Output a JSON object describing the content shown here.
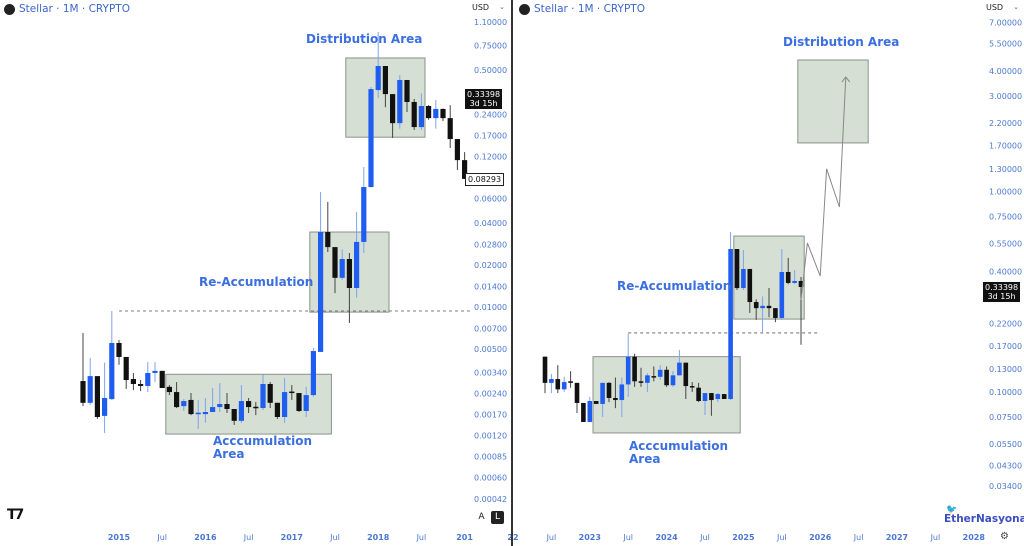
{
  "left_panel": {
    "header": {
      "symbol": "Stellar",
      "interval": "1M",
      "market": "CRYPTO",
      "title": "Stellar · 1M · CRYPTO"
    },
    "currency": "USD",
    "annotations": {
      "distribution": "Distribution Area",
      "reaccumulation": "Re-Accumulation",
      "accumulation_line1": "Acccumulation",
      "accumulation_line2": "Area"
    },
    "price_tag": {
      "price": "0.33398",
      "countdown": "3d 15h"
    },
    "last_close_tag": "0.08293",
    "scale_buttons": {
      "auto": "A",
      "log": "L"
    }
  },
  "right_panel": {
    "header": {
      "title": "Stellar · 1M · CRYPTO"
    },
    "currency": "USD",
    "annotations": {
      "distribution": "Distribution Area",
      "reaccumulation": "Re-Accumulation",
      "accumulation_line1": "Acccumulation",
      "accumulation_line2": "Area"
    },
    "price_tag": {
      "price": "0.33398",
      "countdown": "3d 15h"
    },
    "watermark": "EtherNasyonaL"
  },
  "colors": {
    "up": "#1f5cf0",
    "down": "#111111",
    "box_fill": "#d5dfd3",
    "box_border": "#8b918b",
    "axis_text": "#4a78d0",
    "annotation": "#3b6fe0"
  },
  "icons": {
    "symbol_logo": "stellar-logo-icon",
    "chevron": "chevron-down-icon",
    "tradingview": "tradingview-logo-icon",
    "watermark_bird": "twitter-bird-icon",
    "settings": "gear-icon"
  },
  "chart_data": [
    {
      "type": "candlestick",
      "title": "Stellar · 1M · CRYPTO",
      "yscale": "log",
      "ylim": [
        0.00035,
        1.2
      ],
      "start_month": "2014-08",
      "y_ticks": [
        "1.10000",
        "0.75000",
        "0.50000",
        "0.24000",
        "0.17000",
        "0.12000",
        "0.06000",
        "0.04000",
        "0.02800",
        "0.02000",
        "0.01400",
        "0.01000",
        "0.00700",
        "0.00500",
        "0.00340",
        "0.00240",
        "0.00170",
        "0.00120",
        "0.00085",
        "0.00060",
        "0.00042"
      ],
      "x_ticks": [
        [
          "2015",
          "2015-01"
        ],
        [
          "Jul",
          "2015-07"
        ],
        [
          "2016",
          "2016-01"
        ],
        [
          "Jul",
          "2016-07"
        ],
        [
          "2017",
          "2017-01"
        ],
        [
          "Jul",
          "2017-07"
        ],
        [
          "2018",
          "2018-01"
        ],
        [
          "Jul",
          "2018-07"
        ],
        [
          "201",
          "2019-01"
        ]
      ],
      "ohlc": [
        [
          0.00295,
          0.00652,
          0.00195,
          0.00206
        ],
        [
          0.00206,
          0.00432,
          0.00199,
          0.0032
        ],
        [
          0.0032,
          0.0032,
          0.00158,
          0.00163
        ],
        [
          0.00166,
          0.004,
          0.00125,
          0.00223
        ],
        [
          0.00219,
          0.00937,
          0.00216,
          0.00553
        ],
        [
          0.00553,
          0.00581,
          0.00385,
          0.00439
        ],
        [
          0.00439,
          0.00439,
          0.00259,
          0.003
        ],
        [
          0.00305,
          0.00337,
          0.00254,
          0.00281
        ],
        [
          0.00281,
          0.003,
          0.0025,
          0.00272
        ],
        [
          0.00272,
          0.00404,
          0.00246,
          0.00337
        ],
        [
          0.00337,
          0.00404,
          0.0029,
          0.00349
        ],
        [
          0.00349,
          0.00349,
          0.00263,
          0.00263
        ],
        [
          0.00268,
          0.00276,
          0.00234,
          0.00246
        ],
        [
          0.00246,
          0.0029,
          0.00189,
          0.00192
        ],
        [
          0.00195,
          0.00219,
          0.0018,
          0.00212
        ],
        [
          0.00216,
          0.00242,
          0.00168,
          0.00171
        ],
        [
          0.00174,
          0.00216,
          0.00134,
          0.00175
        ],
        [
          0.00171,
          0.00223,
          0.00148,
          0.00177
        ],
        [
          0.00177,
          0.00263,
          0.00177,
          0.00192
        ],
        [
          0.00192,
          0.00285,
          0.00177,
          0.00202
        ],
        [
          0.00202,
          0.00242,
          0.00174,
          0.00186
        ],
        [
          0.00186,
          0.00186,
          0.00143,
          0.00153
        ],
        [
          0.00153,
          0.00276,
          0.00148,
          0.00212
        ],
        [
          0.00212,
          0.00223,
          0.00174,
          0.00192
        ],
        [
          0.00193,
          0.00209,
          0.00168,
          0.00191
        ],
        [
          0.00189,
          0.0033,
          0.00183,
          0.00281
        ],
        [
          0.00281,
          0.0029,
          0.00189,
          0.00206
        ],
        [
          0.00206,
          0.00206,
          0.00158,
          0.00163
        ],
        [
          0.00163,
          0.0031,
          0.00148,
          0.00246
        ],
        [
          0.00248,
          0.00276,
          0.00216,
          0.00244
        ],
        [
          0.00242,
          0.00242,
          0.00177,
          0.0018
        ],
        [
          0.0018,
          0.00268,
          0.00163,
          0.00234
        ],
        [
          0.00234,
          0.0051,
          0.00228,
          0.00484
        ],
        [
          0.00477,
          0.0668,
          0.00477,
          0.0345
        ],
        [
          0.0345,
          0.0567,
          0.0248,
          0.0269
        ],
        [
          0.0269,
          0.0269,
          0.0126,
          0.0162
        ],
        [
          0.0162,
          0.0259,
          0.0157,
          0.0221
        ],
        [
          0.0221,
          0.0244,
          0.00769,
          0.0137
        ],
        [
          0.0137,
          0.048,
          0.0117,
          0.0293
        ],
        [
          0.0293,
          0.101,
          0.0244,
          0.0725
        ],
        [
          0.0725,
          0.378,
          0.072,
          0.365
        ],
        [
          0.359,
          0.936,
          0.315,
          0.534
        ],
        [
          0.534,
          0.534,
          0.271,
          0.336
        ],
        [
          0.336,
          0.336,
          0.163,
          0.208
        ],
        [
          0.208,
          0.46,
          0.19,
          0.424
        ],
        [
          0.424,
          0.424,
          0.25,
          0.295
        ],
        [
          0.295,
          0.31,
          0.186,
          0.195
        ],
        [
          0.195,
          0.34,
          0.186,
          0.276
        ],
        [
          0.276,
          0.28,
          0.22,
          0.226
        ],
        [
          0.226,
          0.305,
          0.19,
          0.263
        ],
        [
          0.263,
          0.265,
          0.215,
          0.226
        ],
        [
          0.226,
          0.28,
          0.138,
          0.16
        ],
        [
          0.16,
          0.16,
          0.096,
          0.113
        ],
        [
          0.113,
          0.129,
          0.0827,
          0.0829
        ]
      ],
      "zones": [
        {
          "name": "accumulation",
          "from": "2015-08",
          "to": "2017-06",
          "low": 0.00123,
          "high": 0.0033
        },
        {
          "name": "re-accumulation",
          "from": "2017-04",
          "to": "2018-02",
          "low": 0.0092,
          "high": 0.0345
        },
        {
          "name": "distribution",
          "from": "2017-09",
          "to": "2018-07",
          "low": 0.165,
          "high": 0.61
        }
      ],
      "dotted_level": {
        "price": 0.00937,
        "from": "2015-01",
        "to": "2019-02"
      }
    },
    {
      "type": "candlestick",
      "title": "Stellar · 1M · CRYPTO",
      "yscale": "log",
      "ylim": [
        0.03,
        7.5
      ],
      "start_month": "2022-06",
      "y_ticks": [
        "7.00000",
        "5.50000",
        "4.00000",
        "3.00000",
        "2.20000",
        "1.70000",
        "1.30000",
        "1.00000",
        "0.75000",
        "0.55000",
        "0.40000",
        "0.22000",
        "0.17000",
        "0.13000",
        "0.10000",
        "0.07500",
        "0.05500",
        "0.04300",
        "0.03400"
      ],
      "x_ticks": [
        [
          "22",
          "2022-01"
        ],
        [
          "Jul",
          "2022-07"
        ],
        [
          "2023",
          "2023-01"
        ],
        [
          "Jul",
          "2023-07"
        ],
        [
          "2024",
          "2024-01"
        ],
        [
          "Jul",
          "2024-07"
        ],
        [
          "2025",
          "2025-01"
        ],
        [
          "Jul",
          "2025-07"
        ],
        [
          "2026",
          "2026-01"
        ],
        [
          "Jul",
          "2026-07"
        ],
        [
          "2027",
          "2027-01"
        ],
        [
          "Jul",
          "2027-07"
        ],
        [
          "2028",
          "2028-01"
        ]
      ],
      "ohlc": [
        [
          0.15,
          0.15,
          0.0987,
          0.111
        ],
        [
          0.111,
          0.123,
          0.0987,
          0.116
        ],
        [
          0.116,
          0.136,
          0.0987,
          0.103
        ],
        [
          0.103,
          0.119,
          0.1,
          0.112
        ],
        [
          0.113,
          0.127,
          0.105,
          0.111
        ],
        [
          0.111,
          0.111,
          0.0785,
          0.0881
        ],
        [
          0.0881,
          0.0881,
          0.0708,
          0.0708
        ],
        [
          0.0708,
          0.0944,
          0.0708,
          0.0901
        ],
        [
          0.0901,
          0.0901,
          0.0871,
          0.0871
        ],
        [
          0.0871,
          0.111,
          0.075,
          0.111
        ],
        [
          0.111,
          0.112,
          0.089,
          0.0933
        ],
        [
          0.0933,
          0.118,
          0.083,
          0.0911
        ],
        [
          0.0911,
          0.118,
          0.075,
          0.109
        ],
        [
          0.109,
          0.195,
          0.0944,
          0.15
        ],
        [
          0.15,
          0.155,
          0.106,
          0.113
        ],
        [
          0.113,
          0.132,
          0.106,
          0.111
        ],
        [
          0.111,
          0.124,
          0.1,
          0.121
        ],
        [
          0.12,
          0.134,
          0.113,
          0.119
        ],
        [
          0.119,
          0.136,
          0.115,
          0.129
        ],
        [
          0.129,
          0.134,
          0.106,
          0.108
        ],
        [
          0.108,
          0.127,
          0.106,
          0.121
        ],
        [
          0.121,
          0.162,
          0.121,
          0.14
        ],
        [
          0.14,
          0.14,
          0.0922,
          0.107
        ],
        [
          0.107,
          0.112,
          0.1,
          0.106
        ],
        [
          0.105,
          0.111,
          0.089,
          0.0901
        ],
        [
          0.0901,
          0.0987,
          0.0767,
          0.0987
        ],
        [
          0.0987,
          0.0987,
          0.076,
          0.0911
        ],
        [
          0.0922,
          0.0987,
          0.089,
          0.0976
        ],
        [
          0.0976,
          0.0976,
          0.0922,
          0.0922
        ],
        [
          0.0922,
          0.629,
          0.0911,
          0.517
        ],
        [
          0.517,
          0.517,
          0.323,
          0.33
        ],
        [
          0.33,
          0.511,
          0.323,
          0.411
        ],
        [
          0.411,
          0.411,
          0.248,
          0.281
        ],
        [
          0.281,
          0.29,
          0.229,
          0.262
        ],
        [
          0.262,
          0.3,
          0.199,
          0.269
        ],
        [
          0.269,
          0.33,
          0.236,
          0.262
        ],
        [
          0.262,
          0.262,
          0.223,
          0.234
        ],
        [
          0.234,
          0.517,
          0.229,
          0.397
        ],
        [
          0.397,
          0.467,
          0.345,
          0.35
        ],
        [
          0.35,
          0.406,
          0.345,
          0.358
        ],
        [
          0.358,
          0.375,
          0.172,
          0.334
        ]
      ],
      "zones": [
        {
          "name": "accumulation",
          "from": "2023-02",
          "to": "2024-12",
          "low": 0.0624,
          "high": 0.15
        },
        {
          "name": "re-accumulation",
          "from": "2024-12",
          "to": "2025-10",
          "low": 0.231,
          "high": 0.6
        },
        {
          "name": "distribution",
          "from": "2025-10",
          "to": "2026-08",
          "low": 1.75,
          "high": 4.54
        }
      ],
      "dotted_level": {
        "price": 0.197,
        "from": "2023-07",
        "to": "2026-01"
      },
      "projection": [
        [
          "2025-10",
          0.288
        ],
        [
          "2025-11",
          0.554
        ],
        [
          "2026-01",
          0.379
        ],
        [
          "2026-02",
          1.3
        ],
        [
          "2026-04",
          0.838
        ],
        [
          "2026-05",
          3.73
        ]
      ]
    }
  ]
}
